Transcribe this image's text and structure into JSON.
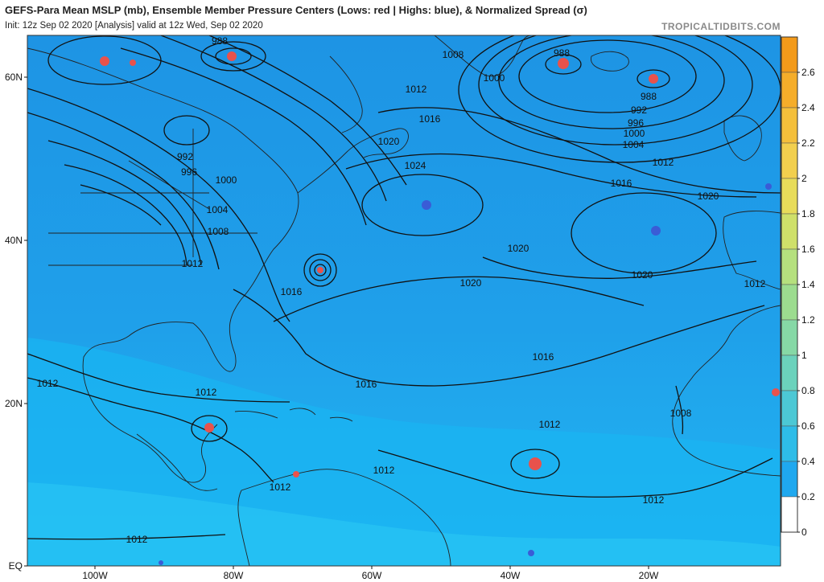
{
  "header": {
    "title": "GEFS-Para Mean MSLP (mb), Ensemble Member Pressure Centers (Lows: red | Highs: blue), & Normalized Spread (σ)",
    "subtitle": "Init: 12z Sep 02 2020   [Analysis]   valid at 12z Wed, Sep 02 2020",
    "credit": "TROPICALTIDBITS.COM"
  },
  "axes": {
    "lat_labels": [
      "60N",
      "40N",
      "20N",
      "EQ"
    ],
    "lon_labels": [
      "100W",
      "80W",
      "60W",
      "40W",
      "20W"
    ]
  },
  "colorbar": {
    "ticks": [
      "2.6",
      "2.4",
      "2.2",
      "2",
      "1.8",
      "1.6",
      "1.4",
      "1.2",
      "1",
      "0.8",
      "0.6",
      "0.4",
      "0.2",
      "0"
    ],
    "colors": [
      "#f39a1a",
      "#f5ad2a",
      "#f4bf3b",
      "#f2cf4e",
      "#e8dc5a",
      "#cfe06a",
      "#b5e07e",
      "#9cdc8f",
      "#86d8a6",
      "#6bd2bc",
      "#4cc8d5",
      "#2ebce8",
      "#1fa8ef",
      "#ffffff"
    ]
  },
  "map_colors": {
    "ocean": "#1f9ce8",
    "tropics": "#1ab0f0",
    "low_marker": "#e8524c",
    "high_marker": "#3a5cd6",
    "contour": "#111111",
    "border": "#222222"
  },
  "isobar_labels": [
    {
      "text": "988"
    },
    {
      "text": "1008"
    },
    {
      "text": "1000"
    },
    {
      "text": "988"
    },
    {
      "text": "988"
    },
    {
      "text": "992"
    },
    {
      "text": "996"
    },
    {
      "text": "1000"
    },
    {
      "text": "1004"
    },
    {
      "text": "1012"
    },
    {
      "text": "1016"
    },
    {
      "text": "1020"
    },
    {
      "text": "1012"
    },
    {
      "text": "1016"
    },
    {
      "text": "1020"
    },
    {
      "text": "1024"
    },
    {
      "text": "992"
    },
    {
      "text": "996"
    },
    {
      "text": "1000"
    },
    {
      "text": "1004"
    },
    {
      "text": "1008"
    },
    {
      "text": "1012"
    },
    {
      "text": "1016"
    },
    {
      "text": "1020"
    },
    {
      "text": "1020"
    },
    {
      "text": "1020"
    },
    {
      "text": "1012"
    },
    {
      "text": "1016"
    },
    {
      "text": "1016"
    },
    {
      "text": "1012"
    },
    {
      "text": "1012"
    },
    {
      "text": "1012"
    },
    {
      "text": "1012"
    },
    {
      "text": "1012"
    },
    {
      "text": "1008"
    },
    {
      "text": "1012"
    },
    {
      "text": "1012"
    }
  ]
}
